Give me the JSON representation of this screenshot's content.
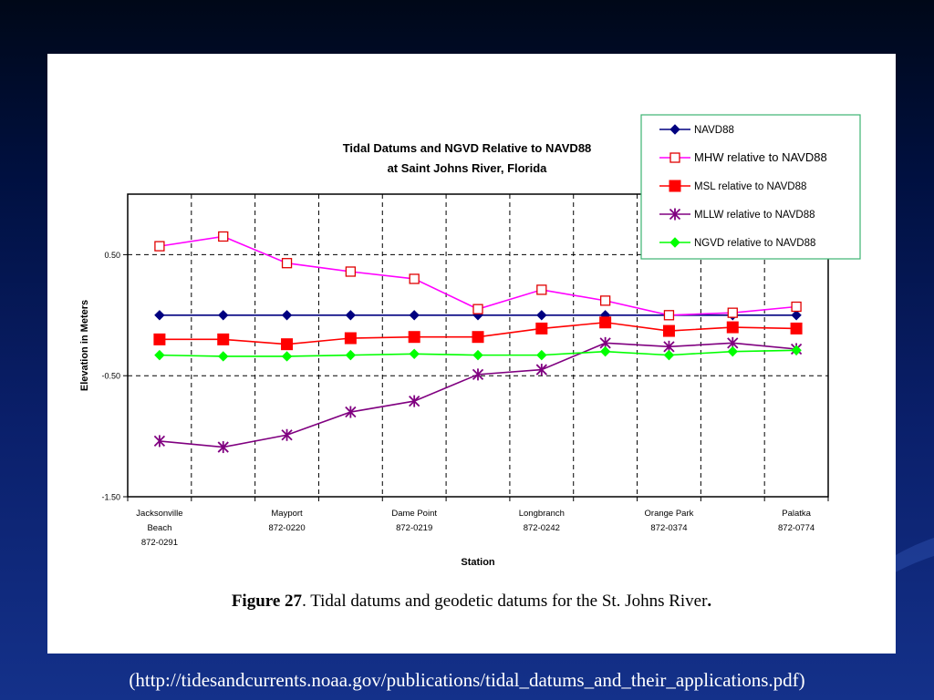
{
  "chart_data": {
    "type": "line",
    "title": "Tidal Datums and NGVD Relative to NAVD88",
    "subtitle": "at Saint Johns River, Florida",
    "xlabel": "Station",
    "ylabel": "Elevation in Meters",
    "ylim": [
      -1.5,
      1.0
    ],
    "yticks": [
      "-1.50",
      "-0.50",
      "0.50"
    ],
    "ytick_values": [
      -1.5,
      -0.5,
      0.5
    ],
    "x_count": 11,
    "x_labels": [
      {
        "index": 0,
        "lines": [
          "Jacksonville",
          "Beach",
          "872-0291"
        ]
      },
      {
        "index": 2,
        "lines": [
          "Mayport",
          "872-0220"
        ]
      },
      {
        "index": 4,
        "lines": [
          "Dame Point",
          "872-0219"
        ]
      },
      {
        "index": 6,
        "lines": [
          "Longbranch",
          "872-0242"
        ]
      },
      {
        "index": 8,
        "lines": [
          "Orange Park",
          "872-0374"
        ]
      },
      {
        "index": 10,
        "lines": [
          "Palatka",
          "872-0774"
        ]
      }
    ],
    "grid": true,
    "legend_position": "top-right",
    "series": [
      {
        "name": "NAVD88",
        "marker": "diamond-filled",
        "color": "#000080",
        "values": [
          0.0,
          0.0,
          0.0,
          0.0,
          0.0,
          0.0,
          0.0,
          0.0,
          0.0,
          0.0,
          0.0
        ]
      },
      {
        "name": "MHW relative to NAVD88",
        "marker": "square-open",
        "color": "#ff00ff",
        "marker_color": "#e00000",
        "values": [
          0.57,
          0.65,
          0.43,
          0.36,
          0.3,
          0.05,
          0.21,
          0.12,
          0.0,
          0.02,
          0.07
        ]
      },
      {
        "name": "MSL relative to NAVD88",
        "marker": "square-filled",
        "color": "#ff0000",
        "values": [
          -0.2,
          -0.2,
          -0.24,
          -0.19,
          -0.18,
          -0.18,
          -0.11,
          -0.06,
          -0.13,
          -0.1,
          -0.11
        ]
      },
      {
        "name": "MLLW relative to NAVD88",
        "marker": "star",
        "color": "#800080",
        "values": [
          -1.04,
          -1.09,
          -0.99,
          -0.8,
          -0.71,
          -0.49,
          -0.45,
          -0.23,
          -0.26,
          -0.23,
          -0.28
        ]
      },
      {
        "name": "NGVD relative to NAVD88",
        "marker": "diamond-filled",
        "color": "#00ff00",
        "values": [
          -0.33,
          -0.34,
          -0.34,
          -0.33,
          -0.32,
          -0.33,
          -0.33,
          -0.3,
          -0.33,
          -0.3,
          -0.29
        ]
      }
    ]
  },
  "caption": {
    "figure_label": "Figure 27",
    "text": ".  Tidal datums and geodetic datums for the St. Johns  River",
    "end": "."
  },
  "source_url": "(http://tidesandcurrents.noaa.gov/publications/tidal_datums_and_their_applications.pdf)"
}
